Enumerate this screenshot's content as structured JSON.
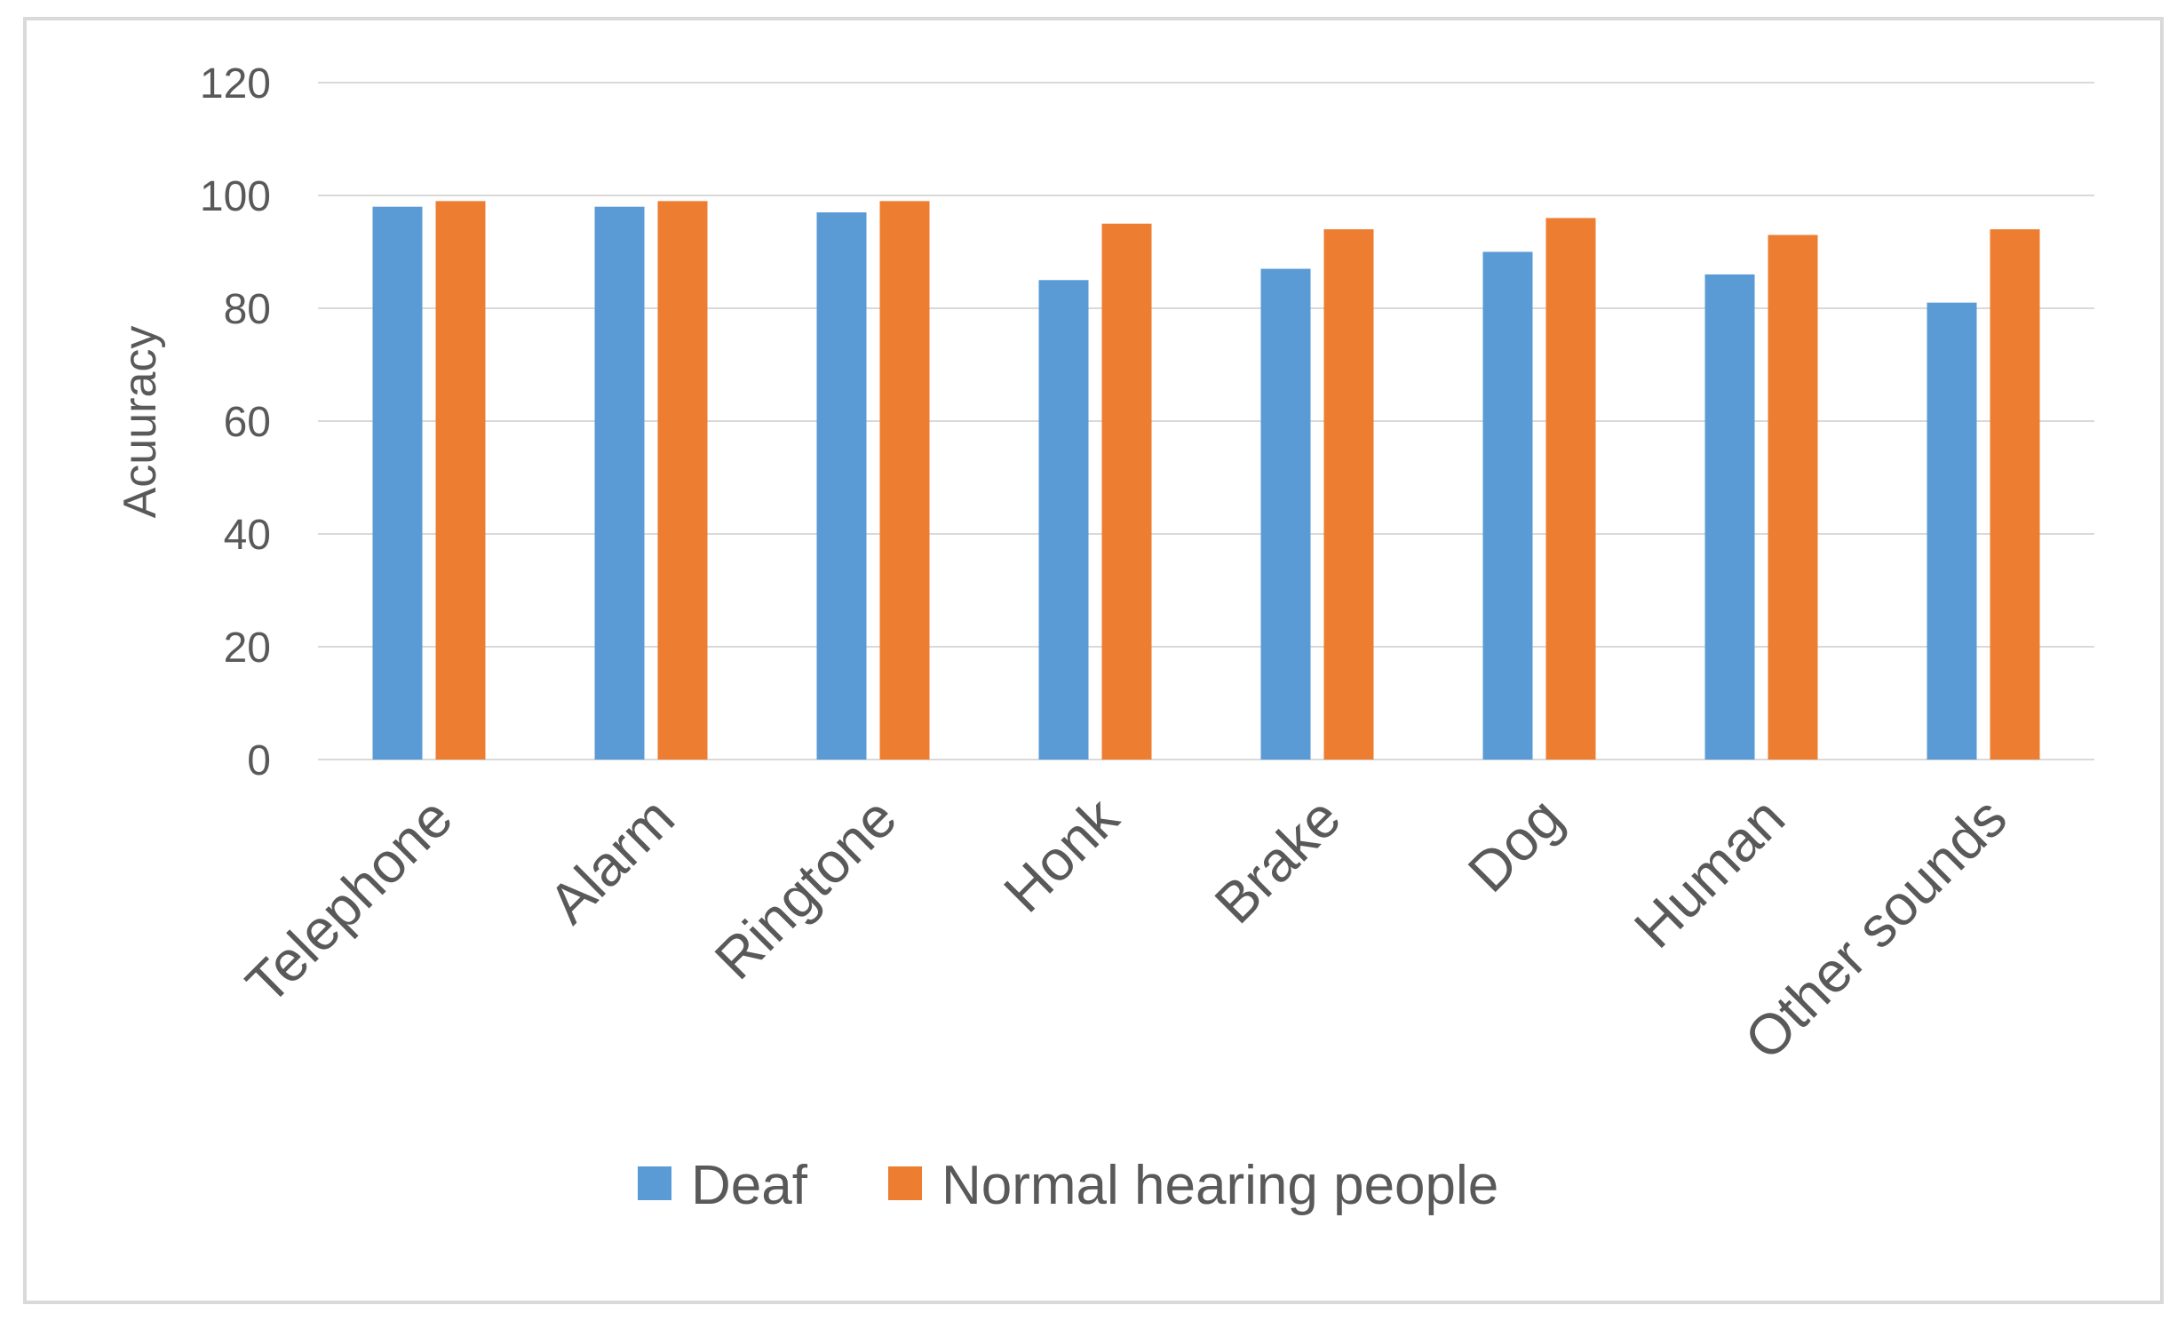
{
  "chart_data": {
    "type": "bar",
    "title": "",
    "xlabel": "",
    "ylabel": "Acuuracy",
    "ylim": [
      0,
      120
    ],
    "yticks": [
      0,
      20,
      40,
      60,
      80,
      100,
      120
    ],
    "grid": true,
    "legend_position": "bottom",
    "categories": [
      "Telephone",
      "Alarm",
      "Ringtone",
      "Honk",
      "Brake",
      "Dog",
      "Human",
      "Other sounds"
    ],
    "series": [
      {
        "name": "Deaf",
        "color": "#5b9bd5",
        "values": [
          98,
          98,
          97,
          85,
          87,
          90,
          86,
          81
        ]
      },
      {
        "name": "Normal hearing people",
        "color": "#ed7d31",
        "values": [
          99,
          99,
          99,
          95,
          94,
          96,
          93,
          94
        ]
      }
    ]
  }
}
